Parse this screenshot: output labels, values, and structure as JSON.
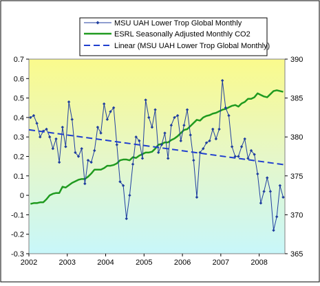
{
  "chart_data": {
    "type": "line",
    "x_labels": [
      "2002",
      "2003",
      "2004",
      "2005",
      "2006",
      "2007",
      "2008"
    ],
    "x_range": [
      2002,
      2008.67
    ],
    "y_left": {
      "range": [
        -0.3,
        0.7
      ],
      "ticks": [
        -0.3,
        -0.2,
        -0.1,
        0,
        0.1,
        0.2,
        0.3,
        0.4,
        0.5,
        0.6,
        0.7
      ],
      "tick_labels": [
        "-0.3",
        "-0.2",
        "-0.1",
        "0",
        "0.1",
        "0.2",
        "0.3",
        "0.4",
        "0.5",
        "0.6",
        "0.7"
      ]
    },
    "y_right": {
      "range": [
        365,
        390
      ],
      "ticks": [
        365,
        370,
        375,
        380,
        385,
        390
      ],
      "tick_labels": [
        "365",
        "370",
        "375",
        "380",
        "385",
        "390"
      ]
    },
    "grid": false,
    "legend_position": "top-right",
    "series": [
      {
        "name": "MSU UAH Lower Trop Global Monthly",
        "axis": "left",
        "color": "#1f3e9f",
        "style": "line-diamond",
        "values": [
          0.4,
          0.41,
          0.37,
          0.3,
          0.33,
          0.34,
          0.3,
          0.24,
          0.29,
          0.17,
          0.35,
          0.25,
          0.48,
          0.39,
          0.22,
          0.2,
          0.24,
          0.06,
          0.18,
          0.17,
          0.23,
          0.35,
          0.32,
          0.47,
          0.39,
          0.43,
          0.45,
          0.26,
          0.07,
          0.05,
          -0.12,
          0.0,
          0.16,
          0.3,
          0.28,
          0.19,
          0.49,
          0.4,
          0.35,
          0.44,
          0.22,
          0.26,
          0.32,
          0.19,
          0.36,
          0.4,
          0.41,
          0.28,
          0.36,
          0.44,
          0.31,
          0.18,
          -0.01,
          0.22,
          0.24,
          0.27,
          0.28,
          0.34,
          0.29,
          0.34,
          0.59,
          0.45,
          0.41,
          0.25,
          0.2,
          0.2,
          0.25,
          0.29,
          0.19,
          0.23,
          0.21,
          0.11,
          -0.04,
          0.02,
          0.09,
          0.02,
          -0.18,
          -0.11,
          0.05,
          -0.01
        ]
      },
      {
        "name": "ESRL Seasonally Adjusted Monthly CO2",
        "axis": "right",
        "color": "#1f9a1f",
        "style": "line",
        "values": [
          371.4,
          371.5,
          371.5,
          371.6,
          371.6,
          372.0,
          372.5,
          372.7,
          372.8,
          372.8,
          373.6,
          373.5,
          373.8,
          374.1,
          374.3,
          374.5,
          374.6,
          374.6,
          374.9,
          375.3,
          375.8,
          375.8,
          375.8,
          376.0,
          376.3,
          376.3,
          376.4,
          376.6,
          377.0,
          377.1,
          377.1,
          377.0,
          377.4,
          377.3,
          377.6,
          377.8,
          378.0,
          378.0,
          378.1,
          378.5,
          379.0,
          379.1,
          379.3,
          379.3,
          379.6,
          379.8,
          380.1,
          380.5,
          380.9,
          381.0,
          381.4,
          381.8,
          382.2,
          382.1,
          382.5,
          382.7,
          382.8,
          383.0,
          383.1,
          383.3,
          383.5,
          383.6,
          383.8,
          384.0,
          384.1,
          383.9,
          384.3,
          384.5,
          384.9,
          384.9,
          385.1,
          385.6,
          385.4,
          385.2,
          385.1,
          385.5,
          385.9,
          386.0,
          385.9,
          385.8
        ]
      },
      {
        "name": "Linear (MSU UAH Lower Trop Global Monthly)",
        "axis": "left",
        "color": "#1f3ecf",
        "style": "dashed",
        "values": [
          0.337,
          0.157
        ]
      }
    ]
  }
}
